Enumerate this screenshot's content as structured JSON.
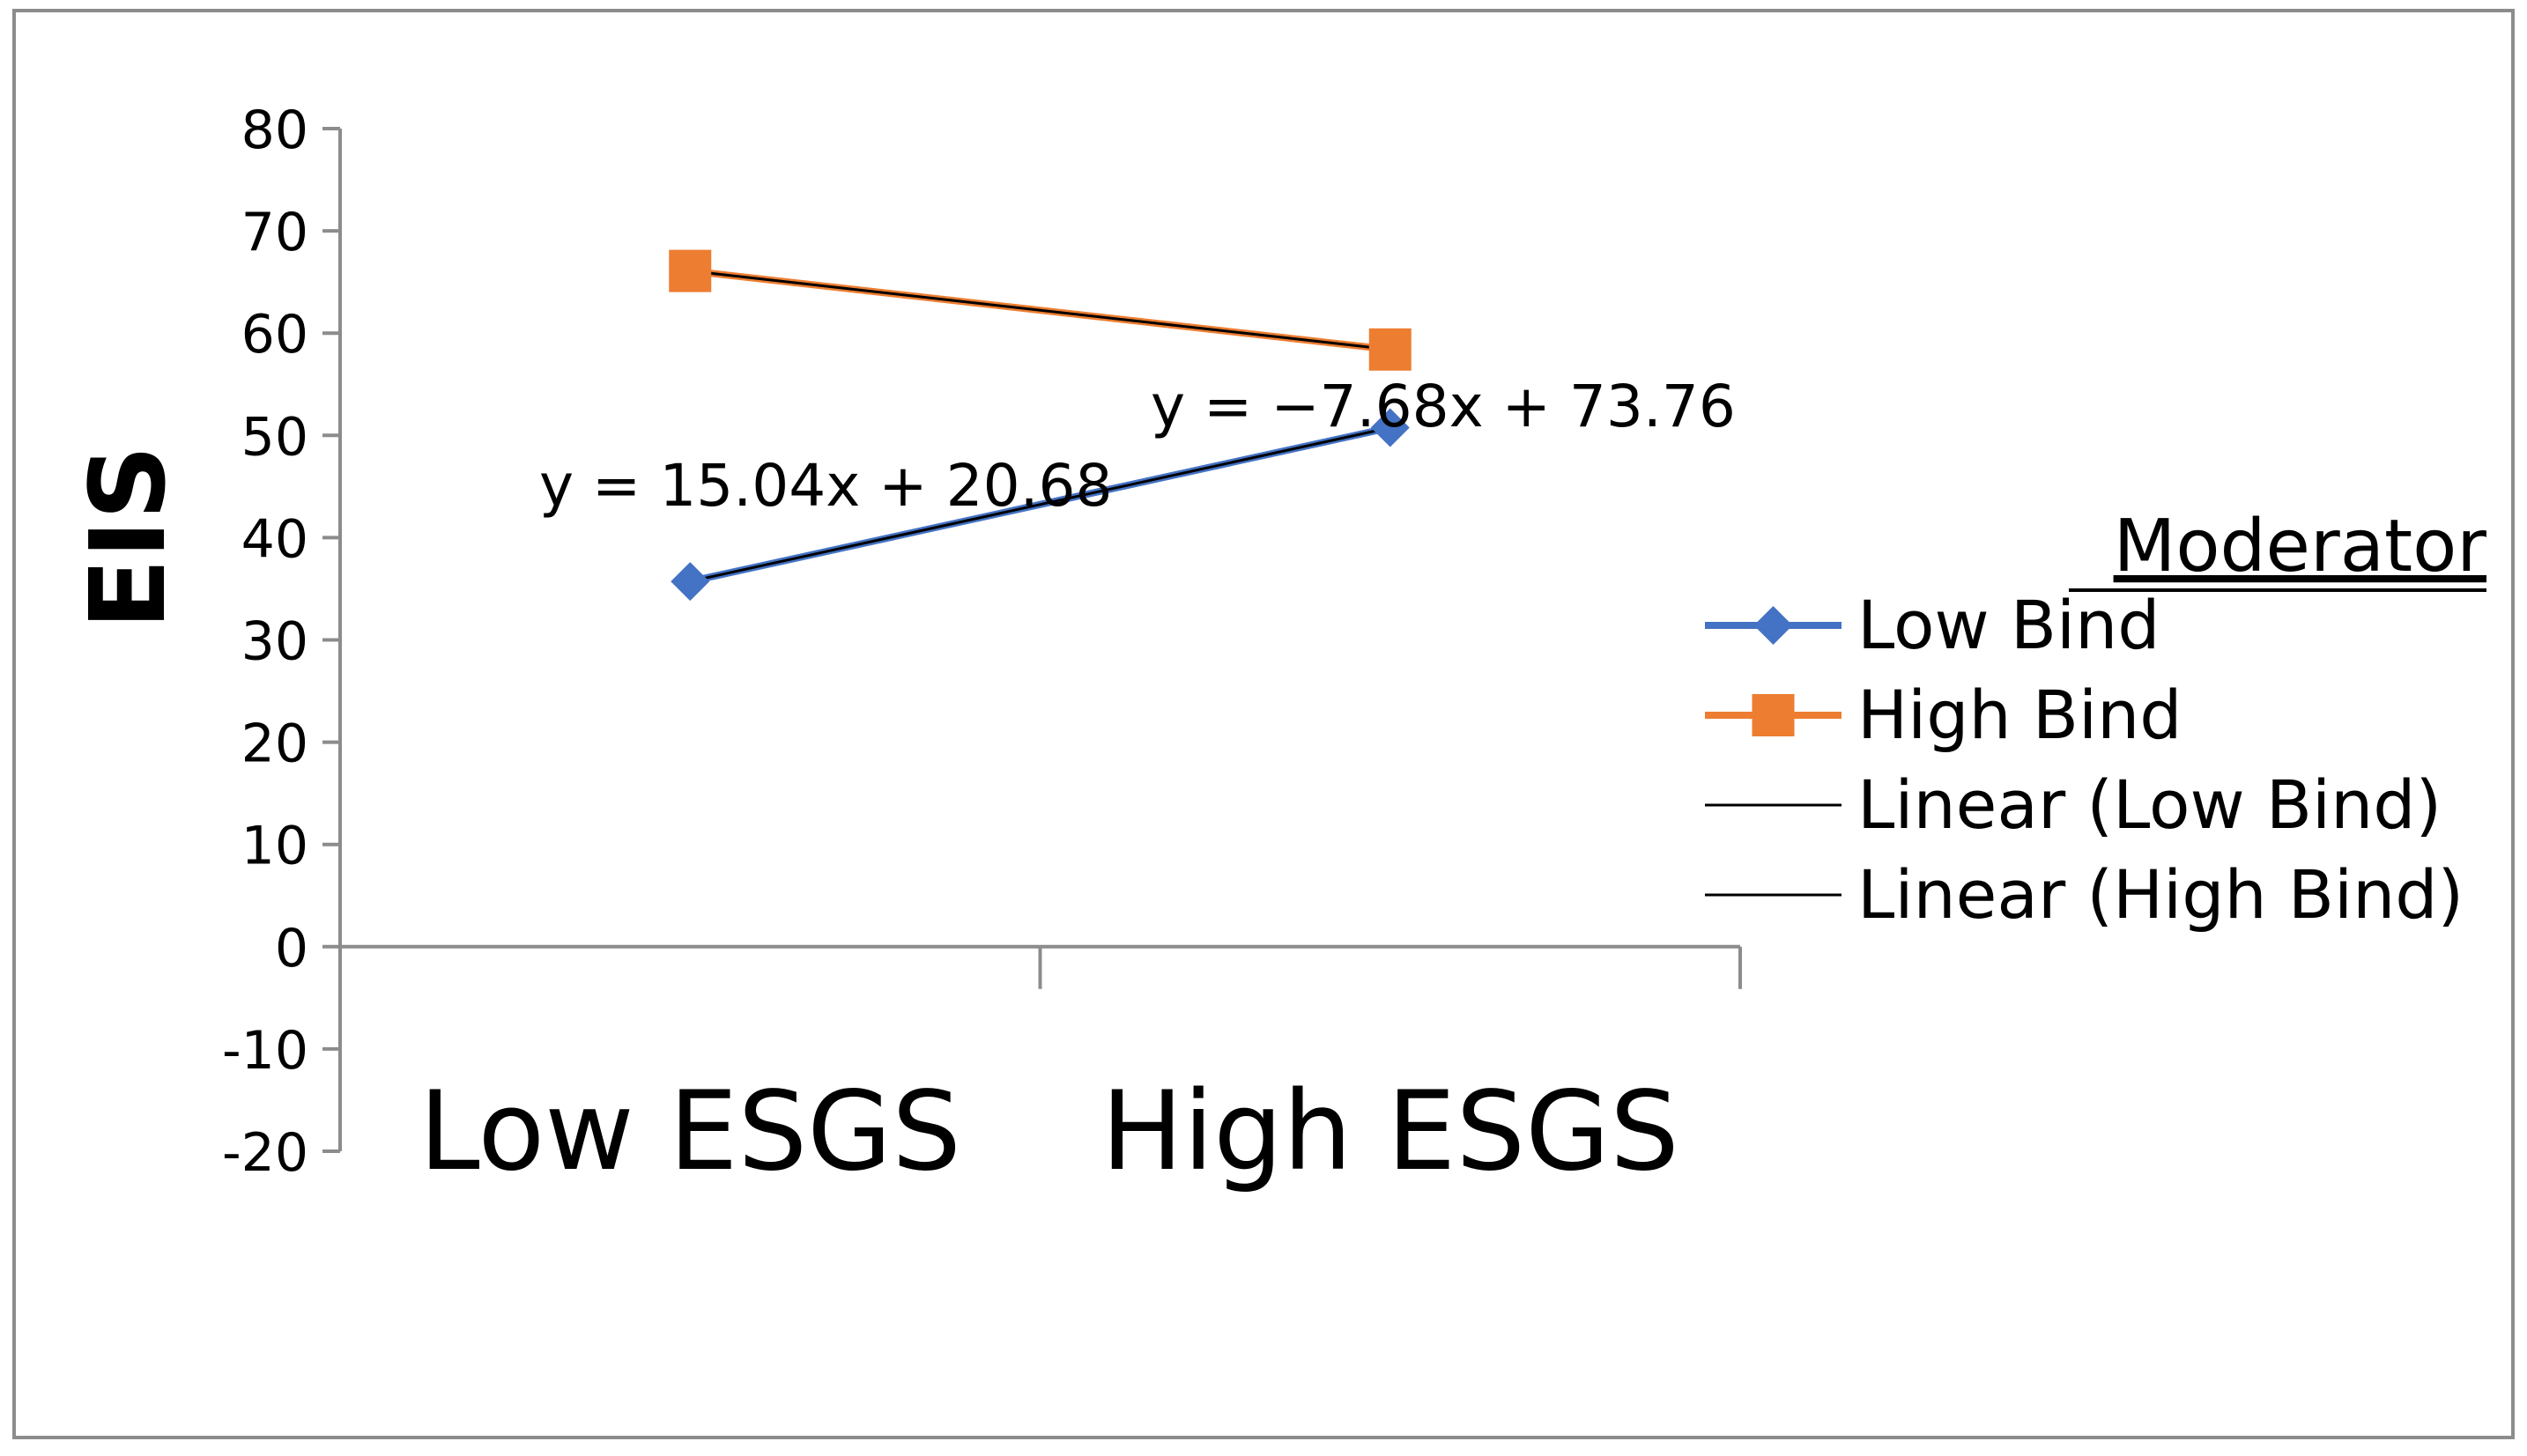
{
  "chart_data": {
    "type": "line",
    "title": "",
    "xlabel": "",
    "ylabel": "EIS",
    "categories": [
      "Low ESGS",
      "High ESGS"
    ],
    "ylim": [
      -20,
      80
    ],
    "yticks": [
      -20,
      -10,
      0,
      10,
      20,
      30,
      40,
      50,
      60,
      70,
      80
    ],
    "grid": false,
    "legend": {
      "title": "Moderator",
      "placement": "right",
      "entries": [
        "Low Bind",
        "High Bind",
        "Linear (Low Bind)",
        "Linear (High Bind)"
      ]
    },
    "series": [
      {
        "name": "Low Bind",
        "values": [
          35.72,
          50.76
        ],
        "color": "#4472C4",
        "marker": "diamond"
      },
      {
        "name": "High Bind",
        "values": [
          66.08,
          58.4
        ],
        "color": "#ED7D31",
        "marker": "square"
      }
    ],
    "trendlines": [
      {
        "name": "Linear (Low Bind)",
        "slope": 15.04,
        "intercept": 20.68,
        "color": "#000000",
        "equation": "y = 15.04x + 20.68"
      },
      {
        "name": "Linear (High Bind)",
        "slope": -7.68,
        "intercept": 73.76,
        "color": "#000000",
        "equation": "y = −7.68x + 73.76"
      }
    ]
  }
}
